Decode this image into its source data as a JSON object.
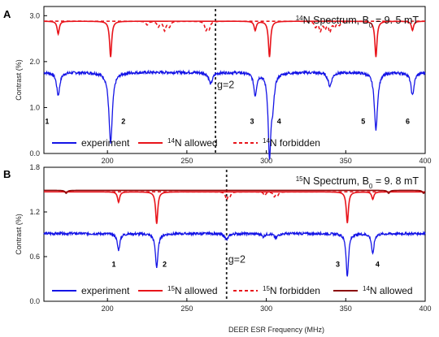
{
  "colors": {
    "experiment": "#1414e6",
    "allowed": "#e8141b",
    "forbidden": "#e8141b",
    "n14allowed": "#8b0a0a"
  },
  "xlabel": "DEER ESR Frequency (MHz)",
  "chart_data": [
    {
      "type": "line",
      "panel": "A",
      "title_prefix": "14",
      "title_suffix": "N Spectrum, B",
      "title_sub": "0",
      "title_value": " = 9. 5 mT",
      "ylabel": "Contrast (%)",
      "xlim": [
        160,
        400
      ],
      "ylim": [
        0,
        3.2
      ],
      "xticks": [
        200,
        250,
        300,
        350,
        400
      ],
      "yticks": [
        0.0,
        1.0,
        2.0,
        3.0
      ],
      "ytick_labels": [
        "0.0",
        "1.0",
        "2.0",
        "3.0"
      ],
      "g_line": 268,
      "g_label": "g=2",
      "series": [
        {
          "name": "experiment",
          "kind": "experiment",
          "baseline": 1.77,
          "dips": [
            [
              169,
              0.5,
              1.2
            ],
            [
              202,
              1.55,
              1.3
            ],
            [
              265,
              0.25,
              1.4
            ],
            [
              293,
              0.48,
              1.1
            ],
            [
              302,
              1.75,
              1.0
            ],
            [
              304,
              0.6,
              1.2
            ],
            [
              340,
              0.3,
              1.4
            ],
            [
              369,
              1.25,
              1.2
            ],
            [
              392,
              0.5,
              1.2
            ]
          ]
        },
        {
          "name": "allowed",
          "kind": "allowed",
          "baseline": 2.88,
          "dips": [
            [
              169,
              0.28,
              0.8
            ],
            [
              202,
              0.78,
              0.8
            ],
            [
              293,
              0.2,
              0.8
            ],
            [
              302,
              0.78,
              0.8
            ],
            [
              369,
              0.78,
              0.8
            ],
            [
              392,
              0.2,
              0.8
            ]
          ]
        },
        {
          "name": "forbidden",
          "kind": "forbidden",
          "baseline": 2.88,
          "dips": [
            [
              225,
              0.08,
              0.9
            ],
            [
              232,
              0.12,
              0.9
            ],
            [
              236,
              0.2,
              0.9
            ],
            [
              239,
              0.12,
              0.9
            ],
            [
              262,
              0.18,
              0.9
            ],
            [
              264,
              0.16,
              0.9
            ],
            [
              331,
              0.12,
              0.9
            ],
            [
              334,
              0.2,
              0.9
            ],
            [
              337,
              0.15,
              0.9
            ],
            [
              340,
              0.22,
              0.9
            ],
            [
              343,
              0.12,
              0.9
            ],
            [
              346,
              0.08,
              0.9
            ]
          ]
        }
      ],
      "annotations": [
        {
          "text": "1",
          "x": 162,
          "y": 0.72
        },
        {
          "text": "2",
          "x": 210,
          "y": 0.72
        },
        {
          "text": "3",
          "x": 291,
          "y": 0.72
        },
        {
          "text": "4",
          "x": 308,
          "y": 0.72
        },
        {
          "text": "5",
          "x": 361,
          "y": 0.72
        },
        {
          "text": "6",
          "x": 389,
          "y": 0.72
        }
      ],
      "legend": [
        {
          "label": "experiment",
          "kind": "experiment"
        },
        {
          "sup": "14",
          "label": "N allowed",
          "kind": "allowed"
        },
        {
          "sup": "14",
          "label": "N forbidden",
          "kind": "forbidden"
        }
      ]
    },
    {
      "type": "line",
      "panel": "B",
      "title_prefix": "15",
      "title_suffix": "N Spectrum, B",
      "title_sub": "0",
      "title_value": " = 9. 8 mT",
      "ylabel": "Contrast (%)",
      "xlim": [
        160,
        400
      ],
      "ylim": [
        0,
        1.8
      ],
      "xticks": [
        200,
        250,
        300,
        350,
        400
      ],
      "yticks": [
        0.0,
        0.6,
        1.2,
        1.8
      ],
      "ytick_labels": [
        "0.0",
        "0.6",
        "1.2",
        "1.8"
      ],
      "g_line": 275,
      "g_label": "g=2",
      "series": [
        {
          "name": "experiment",
          "kind": "experiment",
          "baseline": 0.91,
          "dips": [
            [
              207,
              0.22,
              1.0
            ],
            [
              231,
              0.45,
              1.0
            ],
            [
              275,
              0.08,
              1.4
            ],
            [
              298,
              0.04,
              1.2
            ],
            [
              306,
              0.06,
              1.2
            ],
            [
              351,
              0.58,
              0.9
            ],
            [
              367,
              0.28,
              0.9
            ]
          ]
        },
        {
          "name": "allowed",
          "kind": "allowed",
          "baseline": 1.47,
          "dips": [
            [
              207,
              0.14,
              0.8
            ],
            [
              231,
              0.43,
              0.8
            ],
            [
              351,
              0.42,
              0.8
            ],
            [
              367,
              0.1,
              0.8
            ]
          ]
        },
        {
          "name": "forbidden",
          "kind": "forbidden",
          "baseline": 1.47,
          "dips": [
            [
              275,
              0.1,
              0.8
            ],
            [
              277,
              0.06,
              0.8
            ],
            [
              299,
              0.05,
              0.8
            ],
            [
              305,
              0.06,
              0.8
            ],
            [
              307,
              0.05,
              0.8
            ]
          ]
        },
        {
          "name": "14N allowed",
          "kind": "n14allowed",
          "baseline": 1.49,
          "dips": [
            [
              174,
              0.04,
              0.8
            ],
            [
              377,
              0.04,
              0.8
            ],
            [
              399,
              0.04,
              0.8
            ]
          ]
        }
      ],
      "annotations": [
        {
          "text": "1",
          "x": 204,
          "y": 0.51
        },
        {
          "text": "2",
          "x": 236,
          "y": 0.51
        },
        {
          "text": "3",
          "x": 345,
          "y": 0.51
        },
        {
          "text": "4",
          "x": 370,
          "y": 0.51
        }
      ],
      "legend": [
        {
          "label": "experiment",
          "kind": "experiment"
        },
        {
          "sup": "15",
          "label": "N allowed",
          "kind": "allowed"
        },
        {
          "sup": "15",
          "label": "N forbidden",
          "kind": "forbidden"
        },
        {
          "sup": "14",
          "label": "N allowed",
          "kind": "n14allowed"
        }
      ]
    }
  ]
}
